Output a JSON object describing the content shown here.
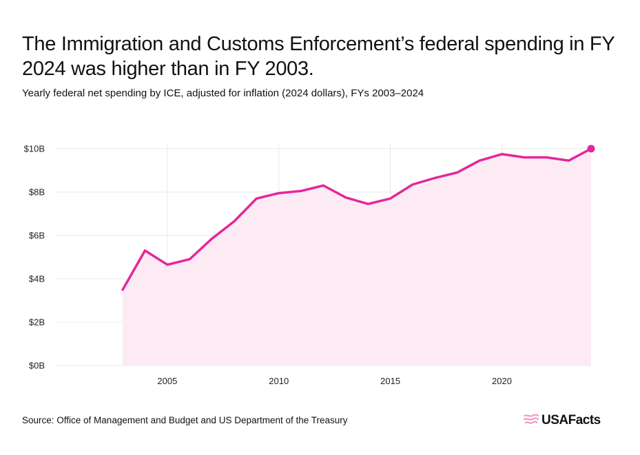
{
  "header": {
    "title": "The Immigration and Customs Enforcement’s federal spending in FY 2024 was higher than in FY 2003.",
    "subtitle": "Yearly federal net spending by ICE, adjusted for inflation (2024 dollars), FYs 2003–2024"
  },
  "footer": {
    "source": "Source: Office of Management and Budget and US Department of the Treasury",
    "logo_text": "USAFacts"
  },
  "colors": {
    "line": "#e4279a",
    "area": "#fdebf4",
    "grid": "#e8e8e8",
    "logo": "#f39ac6"
  },
  "chart_data": {
    "type": "area",
    "title": "The Immigration and Customs Enforcement’s federal spending in FY 2024 was higher than in FY 2003.",
    "subtitle": "Yearly federal net spending by ICE, adjusted for inflation (2024 dollars), FYs 2003–2024",
    "x": [
      2003,
      2004,
      2005,
      2006,
      2007,
      2008,
      2009,
      2010,
      2011,
      2012,
      2013,
      2014,
      2015,
      2016,
      2017,
      2018,
      2019,
      2020,
      2021,
      2022,
      2023,
      2024
    ],
    "series": [
      {
        "values": [
          3.5,
          5.3,
          4.65,
          4.9,
          5.85,
          6.65,
          7.7,
          7.95,
          8.05,
          8.3,
          7.75,
          7.45,
          7.7,
          8.35,
          8.65,
          8.9,
          9.45,
          9.75,
          9.6,
          9.6,
          9.45,
          10.0
        ]
      }
    ],
    "xlim": [
      2000,
      2024
    ],
    "ylim": [
      0,
      10
    ],
    "y_ticks": [
      0,
      2,
      4,
      6,
      8,
      10
    ],
    "y_tick_labels": [
      "$0B",
      "$2B",
      "$4B",
      "$6B",
      "$8B",
      "$10B"
    ],
    "x_ticks": [
      2005,
      2010,
      2015,
      2020
    ],
    "x_tick_labels": [
      "2005",
      "2010",
      "2015",
      "2020"
    ],
    "highlight_last_point": true,
    "grid": true,
    "xlabel": "",
    "ylabel": ""
  }
}
